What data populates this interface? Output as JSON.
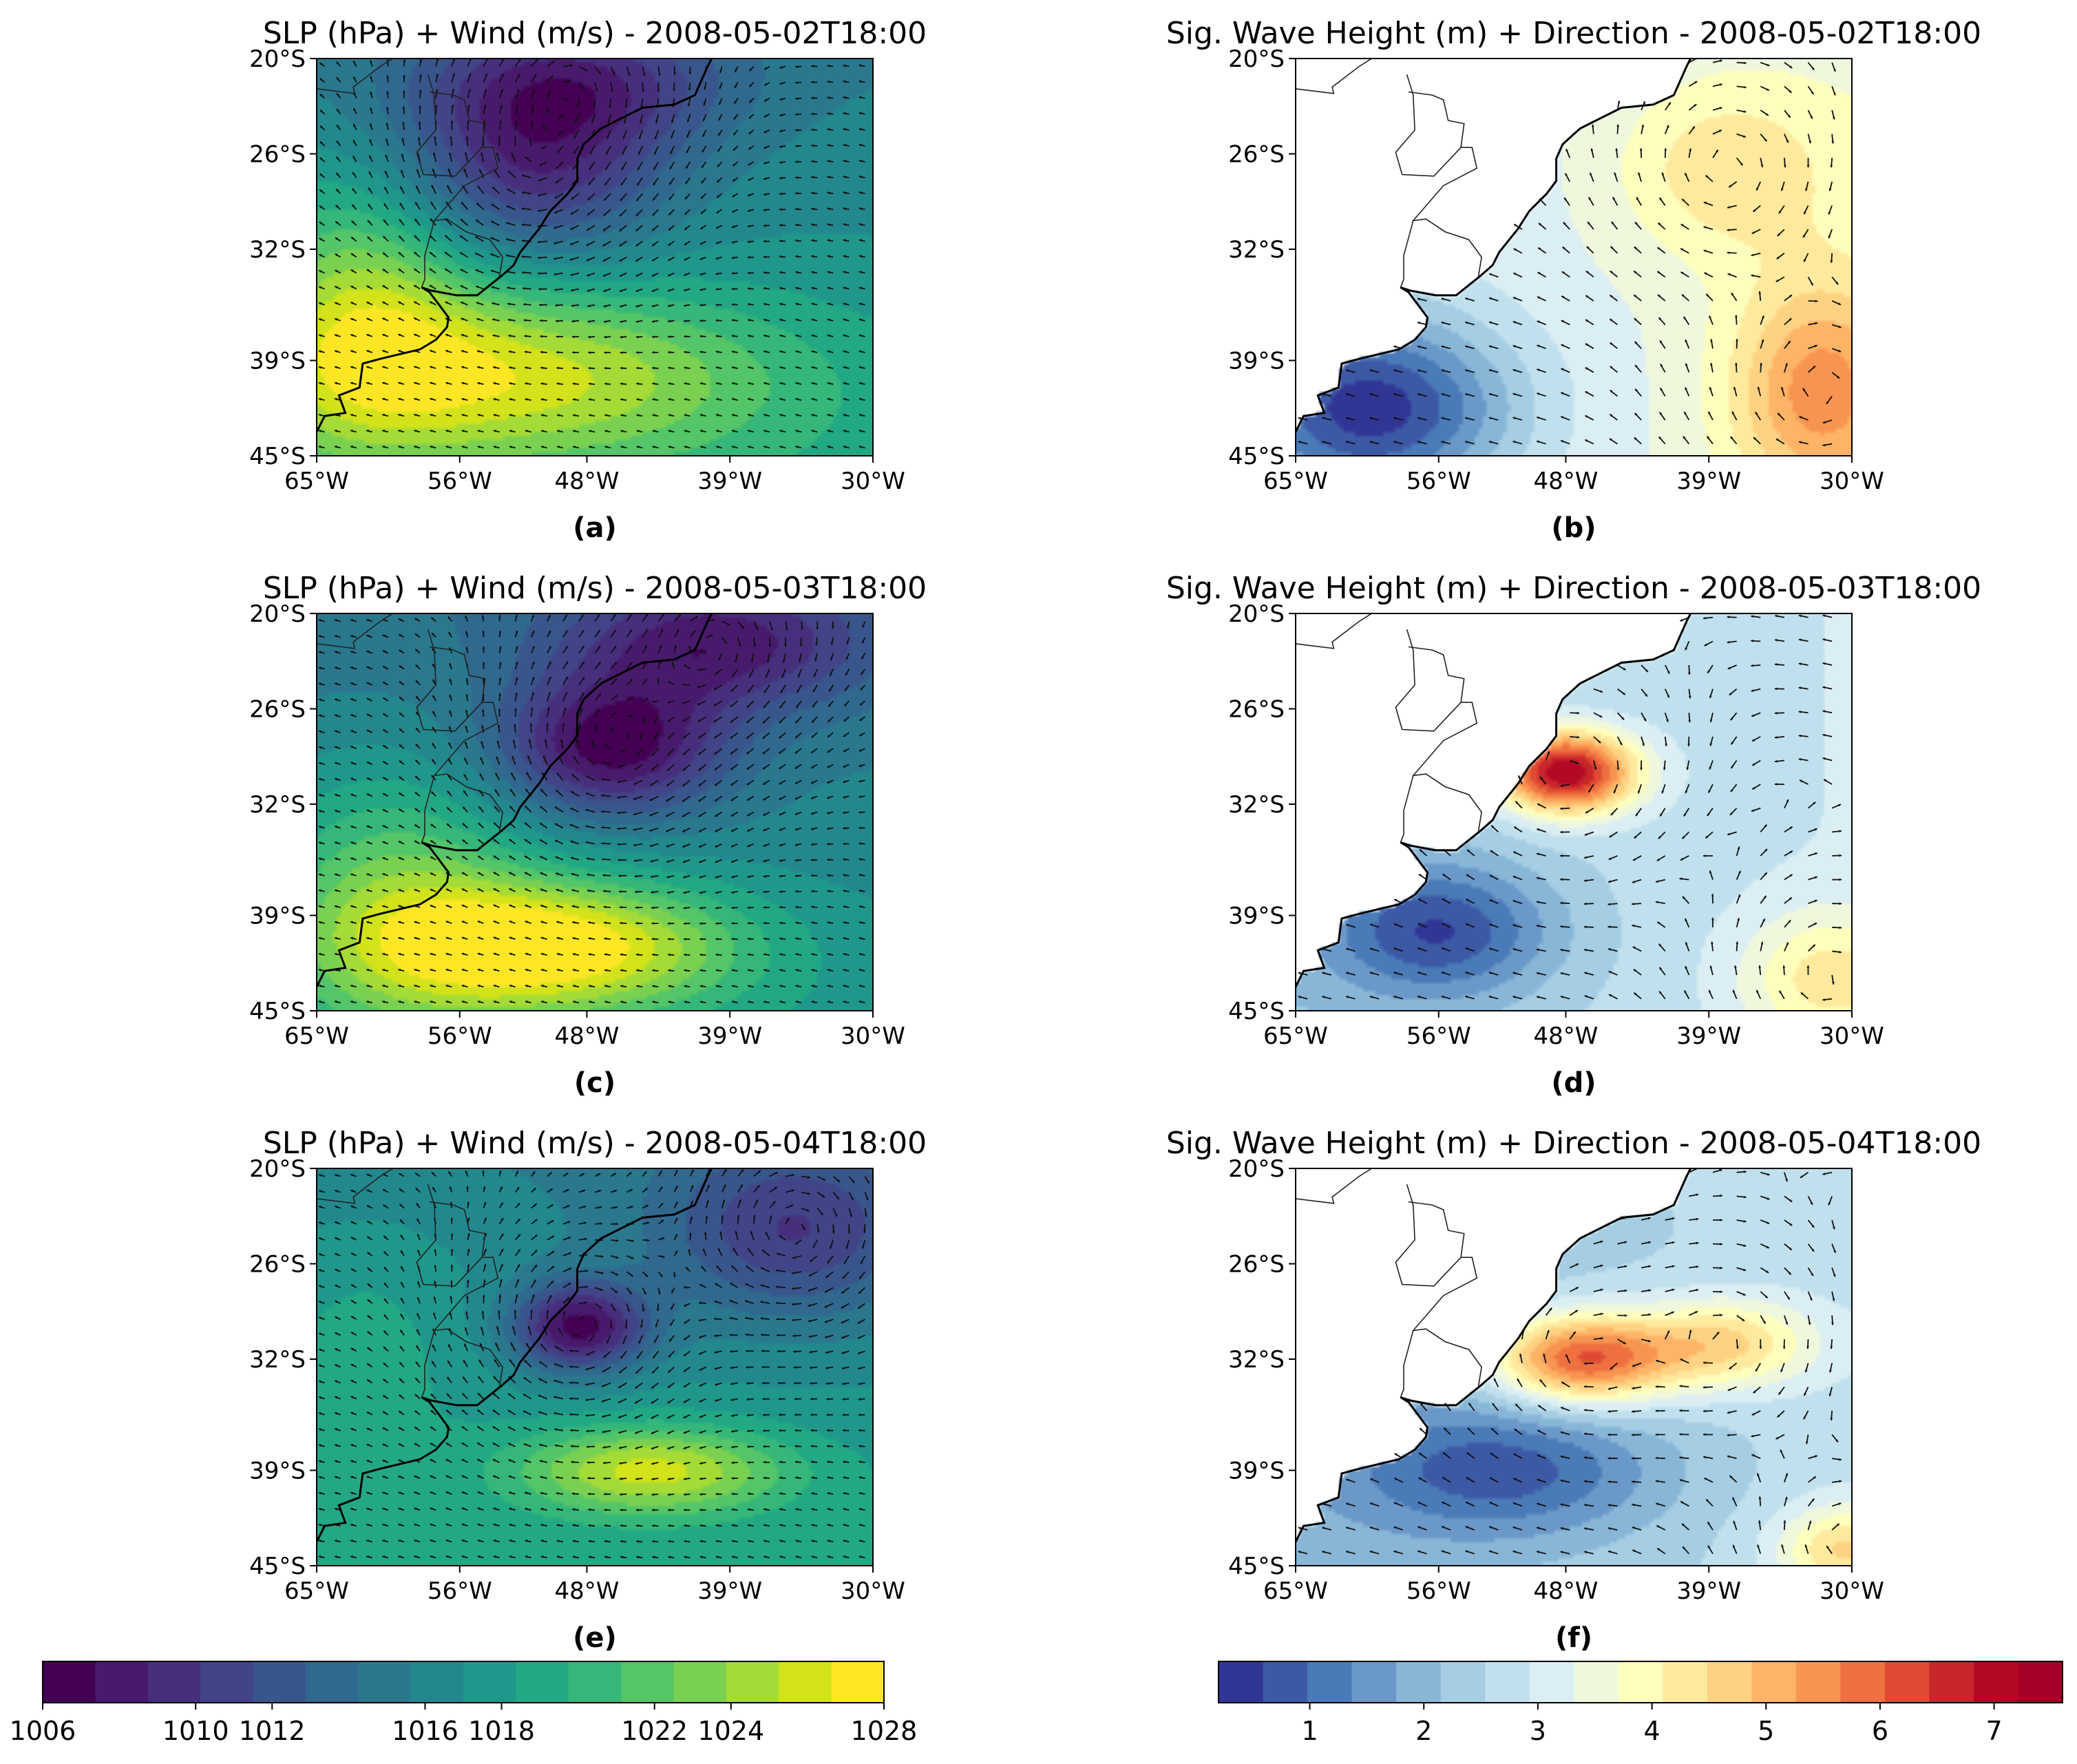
{
  "chart_data": [
    {
      "id": "a",
      "type": "heatmap",
      "title": "SLP (hPa) + Wind (m/s) - 2008-05-02T18:00",
      "panel_label": "(a)",
      "field": "slp",
      "xlim": [
        -65,
        -30
      ],
      "ylim": [
        -45,
        -20
      ],
      "xticks": [
        -65,
        -56,
        -48,
        -39,
        -30
      ],
      "xtick_labels": [
        "65°W",
        "56°W",
        "48°W",
        "39°W",
        "30°W"
      ],
      "yticks": [
        -20,
        -26,
        -32,
        -39,
        -45
      ],
      "ytick_labels": [
        "20°S",
        "26°S",
        "32°S",
        "39°S",
        "45°S"
      ],
      "features": [
        {
          "kind": "low",
          "lon": -51.5,
          "lat": -27.0,
          "value": 1010,
          "sx": 6,
          "sy": 4
        },
        {
          "kind": "low",
          "lon": -49.0,
          "lat": -21.5,
          "value": 1011,
          "sx": 7,
          "sy": 3
        },
        {
          "kind": "high",
          "lon": -53.0,
          "lat": -40.0,
          "value": 1025,
          "sx": 12,
          "sy": 4
        },
        {
          "kind": "high",
          "lon": -62.0,
          "lat": -35.0,
          "value": 1023,
          "sx": 5,
          "sy": 6
        }
      ],
      "background": 1017
    },
    {
      "id": "b",
      "type": "heatmap",
      "title": "Sig. Wave Height (m) + Direction - 2008-05-02T18:00",
      "panel_label": "(b)",
      "field": "hs",
      "xlim": [
        -65,
        -30
      ],
      "ylim": [
        -45,
        -20
      ],
      "xticks": [
        -65,
        -56,
        -48,
        -39,
        -30
      ],
      "xtick_labels": [
        "65°W",
        "56°W",
        "48°W",
        "39°W",
        "30°W"
      ],
      "yticks": [
        -20,
        -26,
        -32,
        -39,
        -45
      ],
      "ytick_labels": [
        "20°S",
        "26°S",
        "32°S",
        "39°S",
        "45°S"
      ],
      "features": [
        {
          "kind": "peak",
          "lon": -32.0,
          "lat": -41.0,
          "value": 5.2,
          "sx": 4,
          "sy": 5
        },
        {
          "kind": "peak",
          "lon": -38.0,
          "lat": -27.0,
          "value": 4.2,
          "sx": 5,
          "sy": 4
        },
        {
          "kind": "low",
          "lon": -60.0,
          "lat": -42.0,
          "value": 0.6,
          "sx": 6,
          "sy": 4
        }
      ],
      "background": 3.2
    },
    {
      "id": "c",
      "type": "heatmap",
      "title": "SLP (hPa) + Wind (m/s) - 2008-05-03T18:00",
      "panel_label": "(c)",
      "field": "slp",
      "xlim": [
        -65,
        -30
      ],
      "ylim": [
        -45,
        -20
      ],
      "xticks": [
        -65,
        -56,
        -48,
        -39,
        -30
      ],
      "xtick_labels": [
        "65°W",
        "56°W",
        "48°W",
        "39°W",
        "30°W"
      ],
      "yticks": [
        -20,
        -26,
        -32,
        -39,
        -45
      ],
      "ytick_labels": [
        "20°S",
        "26°S",
        "32°S",
        "39°S",
        "45°S"
      ],
      "features": [
        {
          "kind": "low",
          "lon": -46.5,
          "lat": -28.5,
          "value": 1007,
          "sx": 5,
          "sy": 3
        },
        {
          "kind": "low",
          "lon": -40.0,
          "lat": -22.0,
          "value": 1009,
          "sx": 7,
          "sy": 3
        },
        {
          "kind": "high",
          "lon": -50.0,
          "lat": -41.0,
          "value": 1027,
          "sx": 8,
          "sy": 3
        },
        {
          "kind": "high",
          "lon": -60.0,
          "lat": -38.0,
          "value": 1022,
          "sx": 6,
          "sy": 6
        }
      ],
      "background": 1016
    },
    {
      "id": "d",
      "type": "heatmap",
      "title": "Sig. Wave Height (m) + Direction - 2008-05-03T18:00",
      "panel_label": "(d)",
      "field": "hs",
      "xlim": [
        -65,
        -30
      ],
      "ylim": [
        -45,
        -20
      ],
      "xticks": [
        -65,
        -56,
        -48,
        -39,
        -30
      ],
      "xtick_labels": [
        "65°W",
        "56°W",
        "48°W",
        "39°W",
        "30°W"
      ],
      "yticks": [
        -20,
        -26,
        -32,
        -39,
        -45
      ],
      "ytick_labels": [
        "20°S",
        "26°S",
        "32°S",
        "39°S",
        "45°S"
      ],
      "features": [
        {
          "kind": "peak",
          "lon": -48.0,
          "lat": -30.0,
          "value": 7.2,
          "sx": 3,
          "sy": 1.8
        },
        {
          "kind": "peak",
          "lon": -31.5,
          "lat": -43.0,
          "value": 4.0,
          "sx": 4,
          "sy": 3
        },
        {
          "kind": "low",
          "lon": -56.0,
          "lat": -40.0,
          "value": 0.7,
          "sx": 5,
          "sy": 3
        }
      ],
      "background": 2.6
    },
    {
      "id": "e",
      "type": "heatmap",
      "title": "SLP (hPa) + Wind (m/s) - 2008-05-04T18:00",
      "panel_label": "(e)",
      "field": "slp",
      "xlim": [
        -65,
        -30
      ],
      "ylim": [
        -45,
        -20
      ],
      "xticks": [
        -65,
        -56,
        -48,
        -39,
        -30
      ],
      "xtick_labels": [
        "65°W",
        "56°W",
        "48°W",
        "39°W",
        "30°W"
      ],
      "yticks": [
        -20,
        -26,
        -32,
        -39,
        -45
      ],
      "ytick_labels": [
        "20°S",
        "26°S",
        "32°S",
        "39°S",
        "45°S"
      ],
      "features": [
        {
          "kind": "low",
          "lon": -48.5,
          "lat": -30.0,
          "value": 1007,
          "sx": 3,
          "sy": 2
        },
        {
          "kind": "low",
          "lon": -35.0,
          "lat": -24.0,
          "value": 1011,
          "sx": 6,
          "sy": 4
        },
        {
          "kind": "high",
          "lon": -44.0,
          "lat": -39.0,
          "value": 1025,
          "sx": 6,
          "sy": 2
        },
        {
          "kind": "high",
          "lon": -62.0,
          "lat": -30.0,
          "value": 1019,
          "sx": 5,
          "sy": 6
        }
      ],
      "background": 1017
    },
    {
      "id": "f",
      "type": "heatmap",
      "title": "Sig. Wave Height (m) + Direction - 2008-05-04T18:00",
      "panel_label": "(f)",
      "field": "hs",
      "xlim": [
        -65,
        -30
      ],
      "ylim": [
        -45,
        -20
      ],
      "xticks": [
        -65,
        -56,
        -48,
        -39,
        -30
      ],
      "xtick_labels": [
        "65°W",
        "56°W",
        "48°W",
        "39°W",
        "30°W"
      ],
      "yticks": [
        -20,
        -26,
        -32,
        -39,
        -45
      ],
      "ytick_labels": [
        "20°S",
        "26°S",
        "32°S",
        "39°S",
        "45°S"
      ],
      "features": [
        {
          "kind": "peak",
          "lon": -47.0,
          "lat": -32.0,
          "value": 6.0,
          "sx": 4,
          "sy": 2
        },
        {
          "kind": "peak",
          "lon": -38.0,
          "lat": -31.0,
          "value": 4.3,
          "sx": 4,
          "sy": 2
        },
        {
          "kind": "peak",
          "lon": -30.5,
          "lat": -44.0,
          "value": 4.2,
          "sx": 3,
          "sy": 2
        },
        {
          "kind": "low",
          "lon": -52.0,
          "lat": -39.0,
          "value": 0.8,
          "sx": 7,
          "sy": 3
        }
      ],
      "background": 2.4
    }
  ],
  "colorbars": {
    "slp": {
      "label_values": [
        1006,
        1010,
        1012,
        1016,
        1018,
        1022,
        1024,
        1028
      ],
      "labels": [
        "1006",
        "1010",
        "1012",
        "1016",
        "1018",
        "1022",
        "1024",
        "1028"
      ],
      "min": 1006,
      "max": 1028,
      "colors": [
        "#440154",
        "#481a6c",
        "#472f7d",
        "#414487",
        "#39568c",
        "#31688e",
        "#2a788e",
        "#23888e",
        "#1f988b",
        "#22a884",
        "#35b779",
        "#54c568",
        "#7ad151",
        "#a5db36",
        "#d2e21b",
        "#fde725"
      ]
    },
    "hs": {
      "label_values": [
        1,
        2,
        3,
        4,
        5,
        6,
        7
      ],
      "labels": [
        "1",
        "2",
        "3",
        "4",
        "5",
        "6",
        "7"
      ],
      "min": 0.2,
      "max": 7.6,
      "colors": [
        "#313695",
        "#3c59a6",
        "#4a7ab7",
        "#6a98c8",
        "#87b6d7",
        "#a5cde3",
        "#c0e0ed",
        "#dbeef4",
        "#eff8dd",
        "#fefebd",
        "#fee99d",
        "#fed283",
        "#fdb466",
        "#f89451",
        "#ee7040",
        "#df4a33",
        "#c7262a",
        "#b30926",
        "#a50026"
      ]
    }
  },
  "map": {
    "coastline": [
      [
        -65,
        -43.5
      ],
      [
        -64.5,
        -42.5
      ],
      [
        -63.2,
        -42.3
      ],
      [
        -63.6,
        -41.2
      ],
      [
        -62.3,
        -40.7
      ],
      [
        -62.1,
        -39.2
      ],
      [
        -61,
        -38.9
      ],
      [
        -58.5,
        -38.3
      ],
      [
        -57.5,
        -37.7
      ],
      [
        -56.8,
        -36.9
      ],
      [
        -56.7,
        -36.3
      ],
      [
        -57.3,
        -35.5
      ],
      [
        -57.9,
        -34.7
      ],
      [
        -58.4,
        -34.4
      ],
      [
        -57.8,
        -34.6
      ],
      [
        -56.2,
        -34.9
      ],
      [
        -54.9,
        -34.9
      ],
      [
        -53.4,
        -33.7
      ],
      [
        -52.6,
        -33
      ],
      [
        -52.2,
        -32.2
      ],
      [
        -51,
        -30.7
      ],
      [
        -50.3,
        -29.6
      ],
      [
        -49.2,
        -28.5
      ],
      [
        -48.6,
        -27.7
      ],
      [
        -48.6,
        -26.3
      ],
      [
        -48.2,
        -25.4
      ],
      [
        -47.1,
        -24.4
      ],
      [
        -45.9,
        -23.8
      ],
      [
        -44.5,
        -23.1
      ],
      [
        -42.5,
        -22.9
      ],
      [
        -41.2,
        -22.3
      ],
      [
        -40.4,
        -20.5
      ],
      [
        -39.9,
        -19.5
      ],
      [
        -39.4,
        -18.8
      ],
      [
        -39.1,
        -17.9
      ]
    ],
    "borders": [
      [
        [
          -65,
          -21.9
        ],
        [
          -62.6,
          -22.2
        ],
        [
          -62.7,
          -21.8
        ],
        [
          -61,
          -20.5
        ],
        [
          -59.1,
          -19.3
        ],
        [
          -58.2,
          -19.8
        ],
        [
          -57.5,
          -20
        ]
      ],
      [
        [
          -57.9,
          -22.1
        ],
        [
          -56.4,
          -22.3
        ],
        [
          -55.7,
          -22.6
        ],
        [
          -55.4,
          -23.9
        ],
        [
          -54.4,
          -24.1
        ],
        [
          -54.6,
          -25.6
        ]
      ],
      [
        [
          -58,
          -21
        ],
        [
          -57.6,
          -22.3
        ],
        [
          -57.5,
          -24.5
        ],
        [
          -58.7,
          -25.9
        ],
        [
          -58.3,
          -27.3
        ],
        [
          -56.3,
          -27.4
        ],
        [
          -54.6,
          -25.6
        ]
      ],
      [
        [
          -54.6,
          -25.6
        ],
        [
          -53.9,
          -25.6
        ],
        [
          -53.6,
          -26.9
        ],
        [
          -55.7,
          -28
        ],
        [
          -57.6,
          -30.2
        ],
        [
          -56.8,
          -30.1
        ],
        [
          -55.6,
          -30.9
        ],
        [
          -54.1,
          -31.4
        ],
        [
          -53.3,
          -32.5
        ],
        [
          -53.5,
          -33.7
        ]
      ],
      [
        [
          -57.6,
          -30.2
        ],
        [
          -58.2,
          -32.4
        ],
        [
          -58.2,
          -33.9
        ],
        [
          -58.4,
          -34.4
        ]
      ]
    ]
  }
}
